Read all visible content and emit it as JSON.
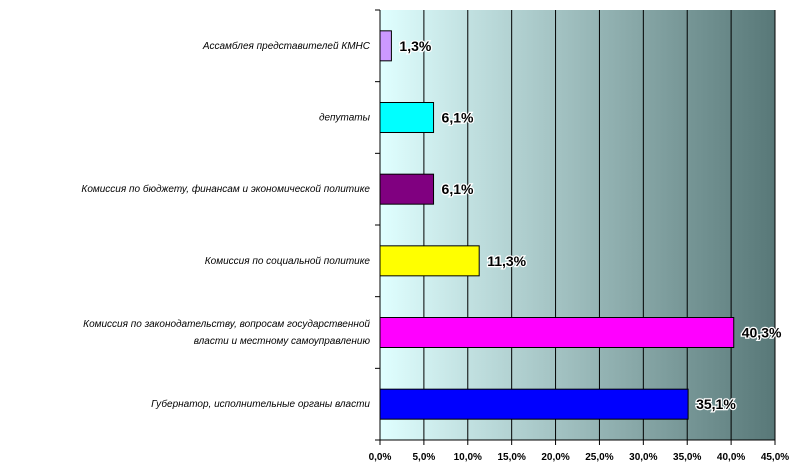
{
  "chart_data": {
    "type": "bar",
    "orientation": "horizontal",
    "categories": [
      "Ассамблея представителей КМНС",
      "депутаты",
      "Комиссия по бюджету, финансам и экономической политике",
      "Комиссия по социальной политике",
      "Комиссия по законодательству, вопросам государственной власти и местному самоуправлению",
      "Губернатор, исполнительные органы власти"
    ],
    "category_lines": [
      [
        "Ассамблея представителей КМНС"
      ],
      [
        "депутаты"
      ],
      [
        "Комиссия по бюджету, финансам и экономической политике"
      ],
      [
        "Комиссия по социальной политике"
      ],
      [
        "Комиссия по законодательству, вопросам государственной",
        "власти и местному самоуправлению"
      ],
      [
        "Губернатор, исполнительные органы власти"
      ]
    ],
    "values": [
      1.3,
      6.1,
      6.1,
      11.3,
      40.3,
      35.1
    ],
    "value_labels": [
      "1,3%",
      "6,1%",
      "6,1%",
      "11,3%",
      "40,3%",
      "35,1%"
    ],
    "bar_colors": [
      "#cc99ff",
      "#00ffff",
      "#800080",
      "#ffff00",
      "#ff00ff",
      "#0000ff"
    ],
    "xlim": [
      0,
      45
    ],
    "xticks": [
      0,
      5,
      10,
      15,
      20,
      25,
      30,
      35,
      40,
      45
    ],
    "xtick_labels": [
      "0,0%",
      "5,0%",
      "10,0%",
      "15,0%",
      "20,0%",
      "25,0%",
      "30,0%",
      "35,0%",
      "40,0%",
      "45,0%"
    ],
    "grid": true,
    "legend": "none",
    "background_gradient": [
      "#e0ffff",
      "#587878"
    ],
    "title": "",
    "xlabel": "",
    "ylabel": ""
  }
}
